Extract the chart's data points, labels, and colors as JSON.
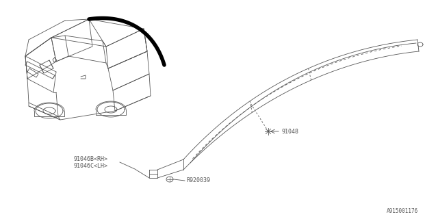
{
  "bg_color": "#ffffff",
  "line_color": "#555555",
  "thick_line_color": "#000000",
  "part_label_1": "91046B<RH>",
  "part_label_2": "91046C<LH>",
  "part_label_3": "91048",
  "part_label_4": "R920039",
  "diagram_id": "A915001176",
  "fig_width": 6.4,
  "fig_height": 3.2,
  "dpi": 100
}
